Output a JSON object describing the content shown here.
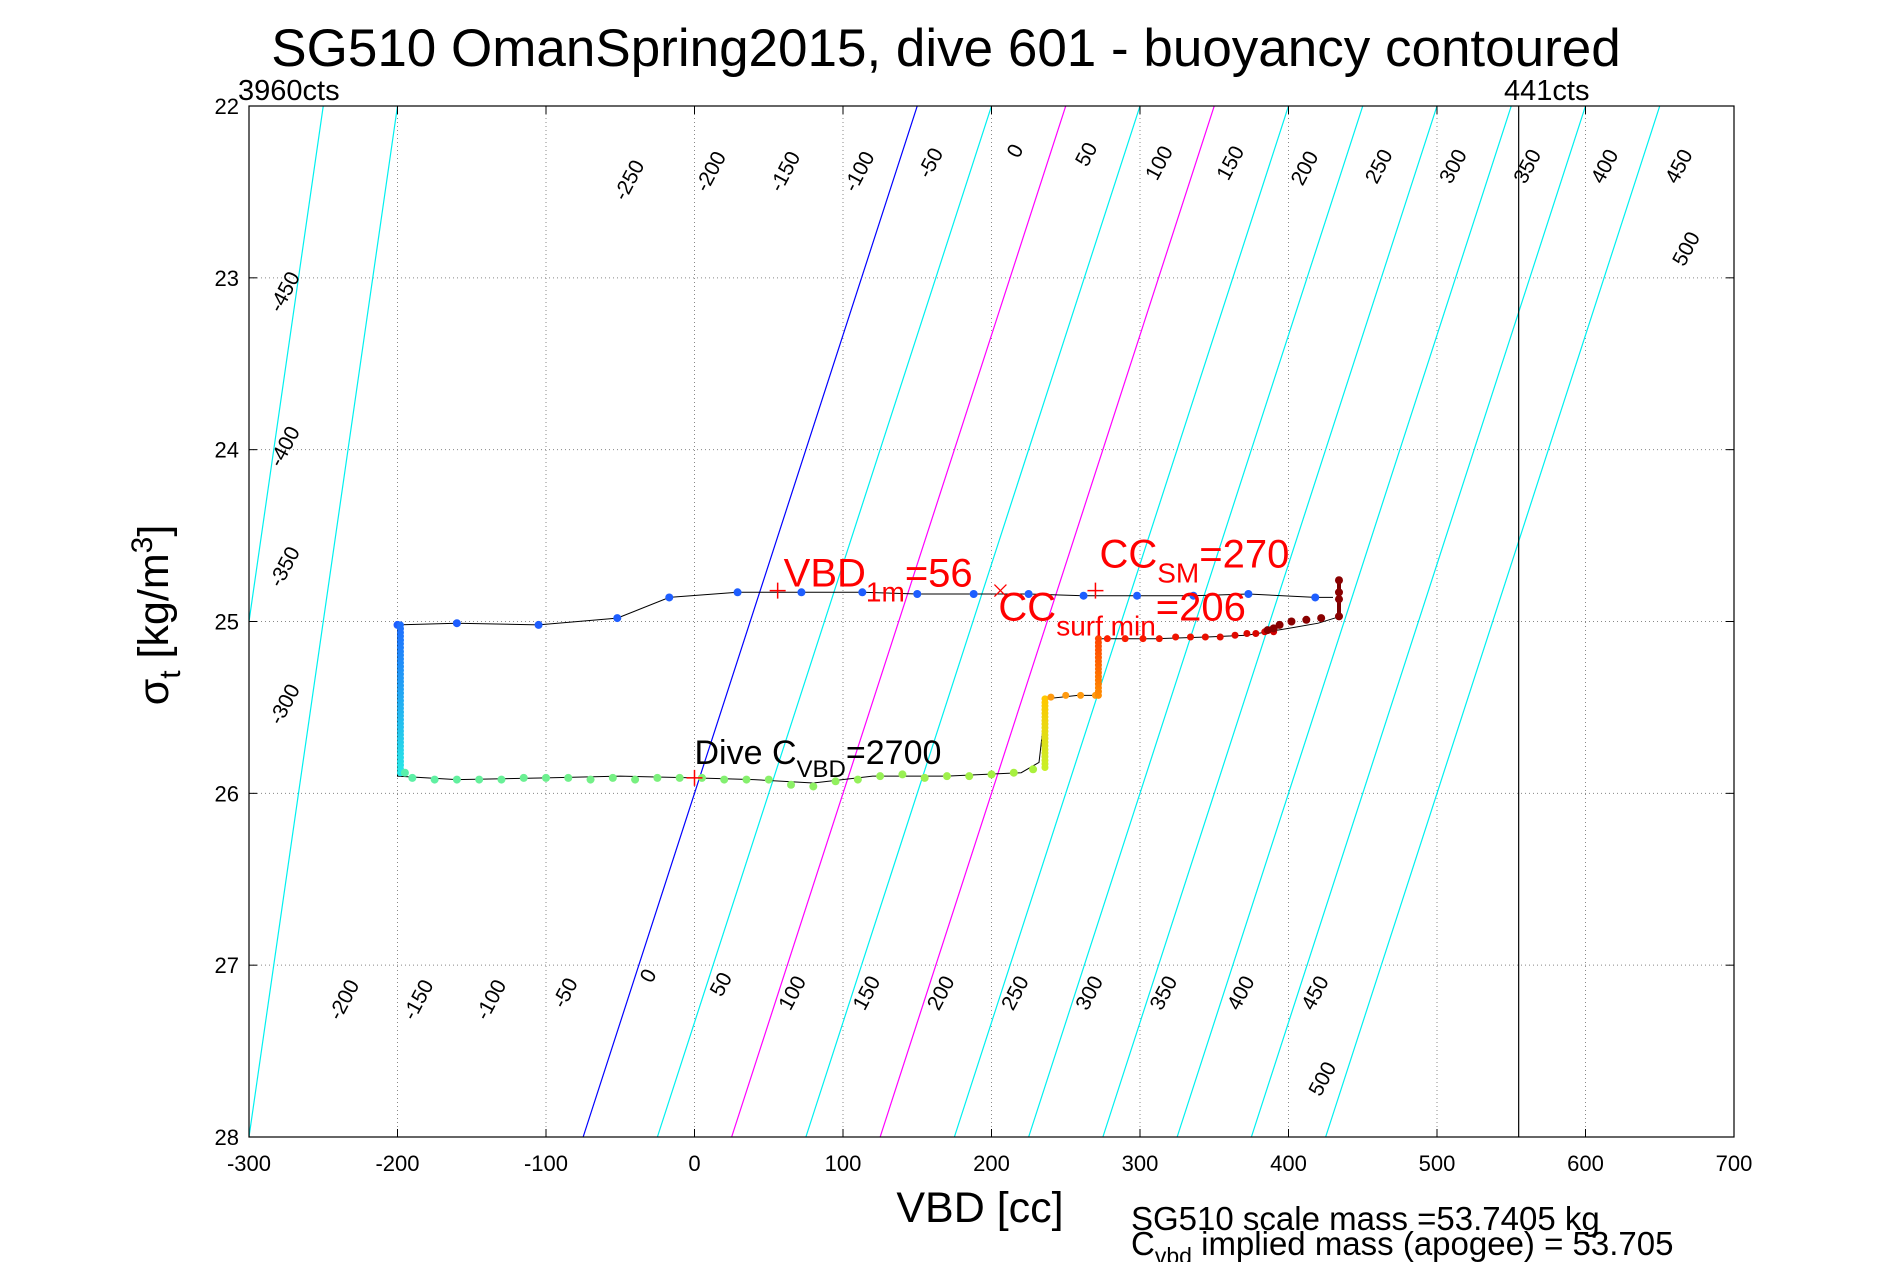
{
  "chart_data": {
    "type": "scatter",
    "title": "SG510 OmanSpring2015, dive 601 - buoyancy contoured",
    "xlabel": "VBD [cc]",
    "ylabel": {
      "sigma": "σ",
      "sub": "t",
      "units": " [kg/m",
      "sup": "3",
      "close": "]"
    },
    "xlim": [
      -300,
      700
    ],
    "ylim": [
      22,
      28
    ],
    "y_reversed": true,
    "grid": "dotted",
    "xticks": [
      -300,
      -200,
      -100,
      0,
      100,
      200,
      300,
      400,
      500,
      600,
      700
    ],
    "yticks": [
      22,
      23,
      24,
      25,
      26,
      27,
      28
    ],
    "top_left_label": "3960cts",
    "top_right_label": "441cts",
    "vbd_limit_x": 555,
    "colors": {
      "contour": "#00f0f0",
      "zero": "#0000ff",
      "magenta": "#ff00ff",
      "limit": "#000000",
      "annot": "#ff0000",
      "track": "#000000"
    },
    "contour_slope": -0.00291,
    "contours": {
      "levels": [
        -450,
        -400,
        -350,
        -300,
        -250,
        -200,
        -150,
        -100,
        -50,
        0,
        50,
        100,
        150,
        200,
        250,
        300,
        350,
        400,
        450,
        500
      ],
      "x_at_22": [
        -600,
        -550,
        -500,
        -450,
        -400,
        -350,
        -300,
        -250,
        -200,
        150,
        200,
        250,
        300,
        350,
        400,
        450,
        500,
        550,
        600,
        650
      ],
      "x_at_28": [
        -700,
        -650,
        -600,
        -550,
        -500,
        -450,
        -400,
        -350,
        -300,
        -75,
        -25,
        25,
        75,
        125,
        175,
        225,
        275,
        325,
        375,
        425
      ],
      "zero_level": 0,
      "magenta_levels": [
        100,
        200
      ]
    },
    "contour_labels": [
      {
        "text": "-250",
        "x": -40,
        "y": 22.45
      },
      {
        "text": "-200",
        "x": 15,
        "y": 22.4
      },
      {
        "text": "-150",
        "x": 65,
        "y": 22.4
      },
      {
        "text": "-100",
        "x": 115,
        "y": 22.4
      },
      {
        "text": "-50",
        "x": 163,
        "y": 22.35
      },
      {
        "text": "0",
        "x": 220,
        "y": 22.28
      },
      {
        "text": "50",
        "x": 268,
        "y": 22.3
      },
      {
        "text": "100",
        "x": 317,
        "y": 22.35
      },
      {
        "text": "150",
        "x": 365,
        "y": 22.35
      },
      {
        "text": "200",
        "x": 415,
        "y": 22.38
      },
      {
        "text": "250",
        "x": 465,
        "y": 22.37
      },
      {
        "text": "300",
        "x": 515,
        "y": 22.37
      },
      {
        "text": "350",
        "x": 565,
        "y": 22.37
      },
      {
        "text": "400",
        "x": 617,
        "y": 22.37
      },
      {
        "text": "450",
        "x": 667,
        "y": 22.37
      },
      {
        "text": "500",
        "x": 672,
        "y": 22.85
      },
      {
        "text": "-450",
        "x": -272,
        "y": 23.1
      },
      {
        "text": "-400",
        "x": -272,
        "y": 24.0
      },
      {
        "text": "-350",
        "x": -272,
        "y": 24.7
      },
      {
        "text": "-300",
        "x": -272,
        "y": 25.5
      },
      {
        "text": "-200",
        "x": -232,
        "y": 27.22
      },
      {
        "text": "-150",
        "x": -182,
        "y": 27.22
      },
      {
        "text": "-100",
        "x": -133,
        "y": 27.22
      },
      {
        "text": "-50",
        "x": -83,
        "y": 27.18
      },
      {
        "text": "0",
        "x": -27,
        "y": 27.08
      },
      {
        "text": "50",
        "x": 22,
        "y": 27.13
      },
      {
        "text": "100",
        "x": 70,
        "y": 27.18
      },
      {
        "text": "150",
        "x": 120,
        "y": 27.18
      },
      {
        "text": "200",
        "x": 170,
        "y": 27.18
      },
      {
        "text": "250",
        "x": 220,
        "y": 27.18
      },
      {
        "text": "300",
        "x": 270,
        "y": 27.18
      },
      {
        "text": "350",
        "x": 320,
        "y": 27.18
      },
      {
        "text": "400",
        "x": 372,
        "y": 27.18
      },
      {
        "text": "450",
        "x": 422,
        "y": 27.18
      },
      {
        "text": "500",
        "x": 427,
        "y": 27.68
      }
    ],
    "track": {
      "descent": [
        [
          -200,
          25.02
        ],
        [
          -160,
          25.01
        ],
        [
          -105,
          25.02
        ],
        [
          -52,
          24.98
        ],
        [
          -17,
          24.86
        ],
        [
          29,
          24.83
        ],
        [
          72,
          24.83
        ],
        [
          113,
          24.83
        ],
        [
          150,
          24.84
        ],
        [
          188,
          24.84
        ],
        [
          225,
          24.84
        ],
        [
          262,
          24.85
        ],
        [
          298,
          24.85
        ],
        [
          336,
          24.85
        ],
        [
          373,
          24.84
        ],
        [
          418,
          24.86
        ],
        [
          430,
          24.86
        ]
      ],
      "ascent": [
        [
          -200,
          25.02
        ],
        [
          -200,
          25.9
        ],
        [
          -160,
          25.92
        ],
        [
          -100,
          25.91
        ],
        [
          -50,
          25.9
        ],
        [
          0,
          25.91
        ],
        [
          40,
          25.92
        ],
        [
          80,
          25.94
        ],
        [
          120,
          25.9
        ],
        [
          170,
          25.9
        ],
        [
          220,
          25.88
        ],
        [
          232,
          25.82
        ],
        [
          237,
          25.45
        ],
        [
          258,
          25.43
        ],
        [
          272,
          25.43
        ],
        [
          272,
          25.1
        ],
        [
          310,
          25.1
        ],
        [
          345,
          25.09
        ],
        [
          372,
          25.08
        ],
        [
          400,
          25.04
        ],
        [
          420,
          25.01
        ],
        [
          435,
          24.97
        ]
      ],
      "right_stack": [
        [
          434,
          24.76
        ],
        [
          434,
          24.83
        ],
        [
          434,
          24.88
        ],
        [
          434,
          24.97
        ]
      ]
    },
    "points": {
      "descent": [
        [
          -200,
          25.02
        ],
        [
          -160,
          25.01
        ],
        [
          -105,
          25.02
        ],
        [
          -52,
          24.98
        ],
        [
          -17,
          24.86
        ],
        [
          29,
          24.83
        ],
        [
          72,
          24.83
        ],
        [
          113,
          24.83
        ],
        [
          150,
          24.84
        ],
        [
          188,
          24.84
        ],
        [
          225,
          24.84
        ],
        [
          262,
          24.85
        ],
        [
          298,
          24.85
        ],
        [
          336,
          24.85
        ],
        [
          373,
          24.84
        ],
        [
          418,
          24.86
        ]
      ],
      "descent_color": "#1e5eff",
      "left_column": {
        "x": -198,
        "y0": 25.02,
        "y1": 25.88,
        "count": 40
      },
      "bottom": [
        [
          -195,
          25.88
        ],
        [
          -190,
          25.91
        ],
        [
          -175,
          25.92
        ],
        [
          -160,
          25.92
        ],
        [
          -145,
          25.92
        ],
        [
          -130,
          25.92
        ],
        [
          -115,
          25.91
        ],
        [
          -100,
          25.91
        ],
        [
          -85,
          25.91
        ],
        [
          -70,
          25.92
        ],
        [
          -55,
          25.91
        ],
        [
          -40,
          25.92
        ],
        [
          -25,
          25.91
        ],
        [
          -10,
          25.91
        ],
        [
          5,
          25.91
        ],
        [
          20,
          25.92
        ],
        [
          35,
          25.92
        ],
        [
          50,
          25.92
        ],
        [
          65,
          25.95
        ],
        [
          80,
          25.96
        ],
        [
          95,
          25.93
        ],
        [
          110,
          25.92
        ],
        [
          125,
          25.9
        ],
        [
          140,
          25.89
        ],
        [
          155,
          25.91
        ],
        [
          170,
          25.9
        ],
        [
          185,
          25.9
        ],
        [
          200,
          25.89
        ],
        [
          215,
          25.88
        ],
        [
          228,
          25.86
        ]
      ],
      "bottom_color": "#7ff07f",
      "yellow_column": {
        "x": 236,
        "y0": 25.45,
        "y1": 25.85,
        "count": 20
      },
      "orange_row": [
        [
          240,
          25.44
        ],
        [
          250,
          25.43
        ],
        [
          260,
          25.43
        ],
        [
          270,
          25.43
        ]
      ],
      "orange_column": {
        "x": 272,
        "y0": 25.1,
        "y1": 25.43,
        "count": 16
      },
      "red_row": [
        [
          278,
          25.1
        ],
        [
          290,
          25.1
        ],
        [
          302,
          25.1
        ],
        [
          313,
          25.1
        ],
        [
          324,
          25.09
        ],
        [
          334,
          25.09
        ],
        [
          344,
          25.09
        ],
        [
          354,
          25.09
        ],
        [
          364,
          25.08
        ],
        [
          372,
          25.07
        ],
        [
          378,
          25.07
        ],
        [
          384,
          25.06
        ],
        [
          390,
          25.06
        ]
      ],
      "dark_cluster": [
        [
          386,
          25.05
        ],
        [
          390,
          25.04
        ],
        [
          394,
          25.02
        ],
        [
          402,
          25.0
        ],
        [
          412,
          24.99
        ],
        [
          422,
          24.98
        ],
        [
          434,
          24.76
        ],
        [
          434,
          24.83
        ],
        [
          434,
          24.87
        ],
        [
          434,
          24.97
        ]
      ]
    },
    "annotations": {
      "vbd1m": {
        "main": "VBD",
        "sub": "1m",
        "value": "=56",
        "x": 56,
        "y": 24.82
      },
      "cc_sm": {
        "main": "CC",
        "sub": "SM",
        "value": "=270",
        "x": 270,
        "y": 24.82
      },
      "cc_surf": {
        "main": "CC",
        "sub": "surf min",
        "value": "=206",
        "x": 206,
        "y": 24.82
      },
      "dive_c": {
        "main": "Dive C",
        "sub": "VBD",
        "value": "=2700",
        "x": 0,
        "y": 25.91
      }
    },
    "footer": {
      "line1": "SG510 scale mass =53.7405 kg",
      "line2_main": "C",
      "line2_sub": "vbd",
      "line2_rest": " implied mass (apogee) = 53.705"
    }
  }
}
